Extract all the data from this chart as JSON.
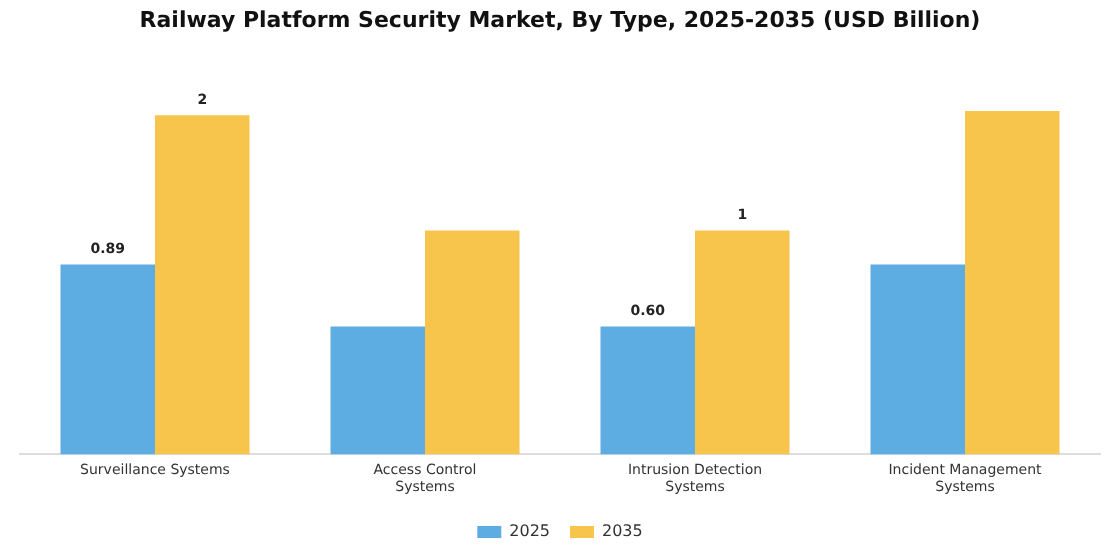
{
  "chart_data": {
    "type": "bar",
    "title": "Railway Platform Security Market, By Type, 2025-2035 (USD Billion)",
    "categories": [
      "Surveillance Systems",
      "Access Control Systems",
      "Intrusion Detection Systems",
      "Incident Management Systems"
    ],
    "series": [
      {
        "name": "2025",
        "color": "#5dade2",
        "values": [
          0.89,
          0.6,
          0.6,
          0.89
        ],
        "value_labels": [
          "0.89",
          null,
          "0.60",
          null
        ]
      },
      {
        "name": "2035",
        "color": "#f7c44c",
        "values": [
          1.59,
          1.05,
          1.05,
          1.61
        ],
        "value_labels": [
          "2",
          null,
          "1",
          null
        ]
      }
    ],
    "legend": "bottom",
    "grid": false
  }
}
